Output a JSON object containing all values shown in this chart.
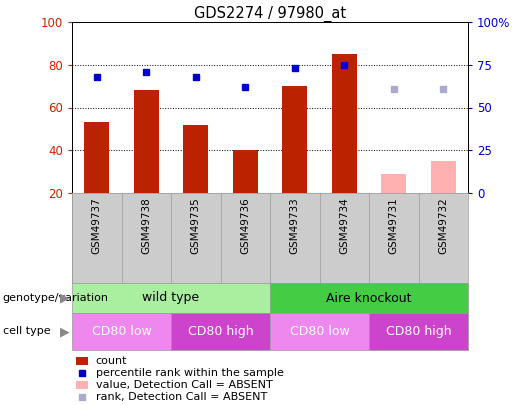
{
  "title": "GDS2274 / 97980_at",
  "samples": [
    "GSM49737",
    "GSM49738",
    "GSM49735",
    "GSM49736",
    "GSM49733",
    "GSM49734",
    "GSM49731",
    "GSM49732"
  ],
  "count_values": [
    53,
    68,
    52,
    40,
    70,
    85,
    null,
    null
  ],
  "count_absent_values": [
    null,
    null,
    null,
    null,
    null,
    null,
    29,
    35
  ],
  "percentile_values": [
    68,
    71,
    68,
    62,
    73,
    75,
    null,
    null
  ],
  "percentile_absent_values": [
    null,
    null,
    null,
    null,
    null,
    null,
    61,
    61
  ],
  "ylim_left": [
    20,
    100
  ],
  "ylim_right": [
    0,
    100
  ],
  "yticks_left": [
    20,
    40,
    60,
    80,
    100
  ],
  "yticks_right": [
    0,
    25,
    50,
    75,
    100
  ],
  "ytick_labels_right": [
    "0",
    "25",
    "50",
    "75",
    "100%"
  ],
  "bar_color": "#BB2200",
  "bar_absent_color": "#FFB0B0",
  "dot_color": "#0000CC",
  "dot_absent_color": "#AAAACC",
  "bar_width": 0.5,
  "genotype_groups": [
    {
      "label": "wild type",
      "start": 0,
      "end": 4,
      "color": "#AAEEA0"
    },
    {
      "label": "Aire knockout",
      "start": 4,
      "end": 8,
      "color": "#44CC44"
    }
  ],
  "cell_type_groups": [
    {
      "label": "CD80 low",
      "start": 0,
      "end": 2,
      "color": "#EE88EE"
    },
    {
      "label": "CD80 high",
      "start": 2,
      "end": 4,
      "color": "#CC44CC"
    },
    {
      "label": "CD80 low",
      "start": 4,
      "end": 6,
      "color": "#EE88EE"
    },
    {
      "label": "CD80 high",
      "start": 6,
      "end": 8,
      "color": "#CC44CC"
    }
  ],
  "legend_items": [
    {
      "label": "count",
      "color": "#BB2200",
      "type": "bar"
    },
    {
      "label": "percentile rank within the sample",
      "color": "#0000CC",
      "type": "dot"
    },
    {
      "label": "value, Detection Call = ABSENT",
      "color": "#FFB0B0",
      "type": "bar"
    },
    {
      "label": "rank, Detection Call = ABSENT",
      "color": "#AAAACC",
      "type": "dot"
    }
  ],
  "label_genotype": "genotype/variation",
  "label_celltype": "cell type",
  "background_color": "#FFFFFF",
  "plot_bg_color": "#FFFFFF",
  "tick_color_left": "#CC2200",
  "tick_color_right": "#0000BB",
  "sample_box_color": "#CCCCCC",
  "sample_box_border": "#999999"
}
